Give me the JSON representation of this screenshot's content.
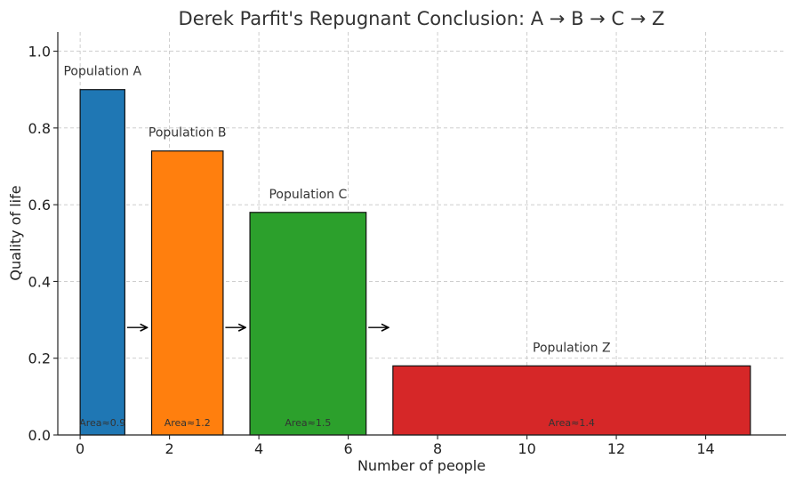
{
  "chart_data": {
    "type": "bar",
    "title": "Derek Parfit's Repugnant Conclusion: A → B → C → Z",
    "xlabel": "Number of people",
    "ylabel": "Quality of life",
    "xlim": [
      -0.5,
      15.8
    ],
    "ylim": [
      0,
      1.05
    ],
    "xticks": [
      0,
      2,
      4,
      6,
      8,
      10,
      12,
      14
    ],
    "yticks": [
      0.0,
      0.2,
      0.4,
      0.6,
      0.8,
      1.0
    ],
    "xtick_labels": [
      "0",
      "2",
      "4",
      "6",
      "8",
      "10",
      "12",
      "14"
    ],
    "ytick_labels": [
      "0.0",
      "0.2",
      "0.4",
      "0.6",
      "0.8",
      "1.0"
    ],
    "grid": true,
    "bars": [
      {
        "label": "Population A",
        "x_start": 0.0,
        "x_end": 1.0,
        "quality": 0.9,
        "color": "#1f77b4",
        "area_label": "Area≈0.9"
      },
      {
        "label": "Population B",
        "x_start": 1.6,
        "x_end": 3.2,
        "quality": 0.74,
        "color": "#ff7f0e",
        "area_label": "Area≈1.2"
      },
      {
        "label": "Population C",
        "x_start": 3.8,
        "x_end": 6.4,
        "quality": 0.58,
        "color": "#2ca02c",
        "area_label": "Area≈1.5"
      },
      {
        "label": "Population Z",
        "x_start": 7.0,
        "x_end": 15.0,
        "quality": 0.18,
        "color": "#d62728",
        "area_label": "Area≈1.4"
      }
    ],
    "arrows": [
      {
        "x_from": 1.05,
        "x_to": 1.5,
        "y": 0.28
      },
      {
        "x_from": 3.25,
        "x_to": 3.7,
        "y": 0.28
      },
      {
        "x_from": 6.45,
        "x_to": 6.9,
        "y": 0.28
      }
    ]
  }
}
